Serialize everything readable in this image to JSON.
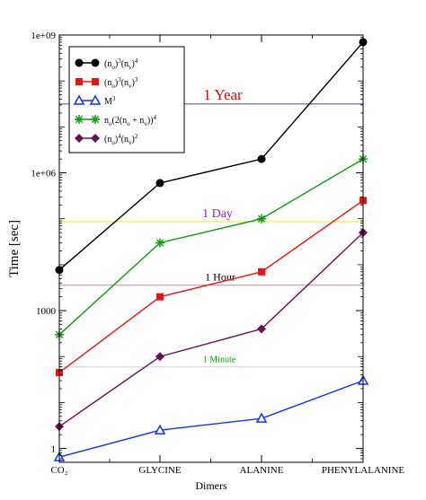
{
  "chart_data": {
    "type": "line",
    "title": "",
    "xlabel": "Dimers",
    "ylabel": "Time [sec]",
    "yscale": "log",
    "ylim": [
      0.5,
      1000000000
    ],
    "grid": false,
    "legend_position": "top-left",
    "categories": [
      "CO₂",
      "GLYCINE",
      "ALANINE",
      "PHENYLALANINE"
    ],
    "y_ticks": [
      1,
      1000,
      1000000,
      1000000000
    ],
    "y_tick_labels": [
      "1",
      "1000",
      "1e+06",
      "1e+09"
    ],
    "series": [
      {
        "legend_parts": [
          [
            "(n",
            ""
          ],
          [
            "o",
            "sub"
          ],
          [
            ")",
            ""
          ],
          [
            "3",
            "sup"
          ],
          [
            "(n",
            ""
          ],
          [
            "v",
            "sub"
          ],
          [
            ")",
            ""
          ],
          [
            "4",
            "sup"
          ]
        ],
        "color": "#000000",
        "marker": "circle",
        "values": [
          7700,
          600000,
          2000000,
          700000000
        ]
      },
      {
        "legend_parts": [
          [
            "(n",
            ""
          ],
          [
            "o",
            "sub"
          ],
          [
            ")",
            ""
          ],
          [
            "3",
            "sup"
          ],
          [
            "(n",
            ""
          ],
          [
            "v",
            "sub"
          ],
          [
            ")",
            ""
          ],
          [
            "3",
            "sup"
          ]
        ],
        "color": "#ee1111",
        "marker": "square",
        "values": [
          45,
          2000,
          7000,
          250000
        ]
      },
      {
        "legend_parts": [
          [
            "M",
            ""
          ],
          [
            "3",
            "sup"
          ]
        ],
        "color": "#1133ee",
        "marker": "triangle",
        "values": [
          0.65,
          2.5,
          4.5,
          30
        ]
      },
      {
        "legend_parts": [
          [
            "n",
            ""
          ],
          [
            "o",
            "sub"
          ],
          [
            "(2(n",
            ""
          ],
          [
            "o",
            "sub"
          ],
          [
            " + n",
            ""
          ],
          [
            "v",
            "sub"
          ],
          [
            "))",
            ""
          ],
          [
            "4",
            "sup"
          ]
        ],
        "color": "#119911",
        "marker": "star",
        "values": [
          300,
          30000,
          100000,
          2000000
        ]
      },
      {
        "legend_parts": [
          [
            "(n",
            ""
          ],
          [
            "o",
            "sub"
          ],
          [
            ")",
            ""
          ],
          [
            "4",
            "sup"
          ],
          [
            "(n",
            ""
          ],
          [
            "v",
            "sub"
          ],
          [
            ")",
            ""
          ],
          [
            "2",
            "sup"
          ]
        ],
        "color": "#661155",
        "marker": "diamond",
        "values": [
          3,
          100,
          400,
          50000
        ]
      }
    ],
    "reference_lines": [
      {
        "label": "1 Year",
        "value": 31536000,
        "color": "#5555dd",
        "label_color": "#cc1111"
      },
      {
        "label": "1 Day",
        "value": 86400,
        "color": "#eeee44",
        "label_color": "#9922bb"
      },
      {
        "label": "1 Hour",
        "value": 3600,
        "color": "#ee9999",
        "label_color": "#000000"
      },
      {
        "label": "1 Minute",
        "value": 60,
        "color": "#dddddd",
        "label_color": "#119911"
      }
    ]
  }
}
